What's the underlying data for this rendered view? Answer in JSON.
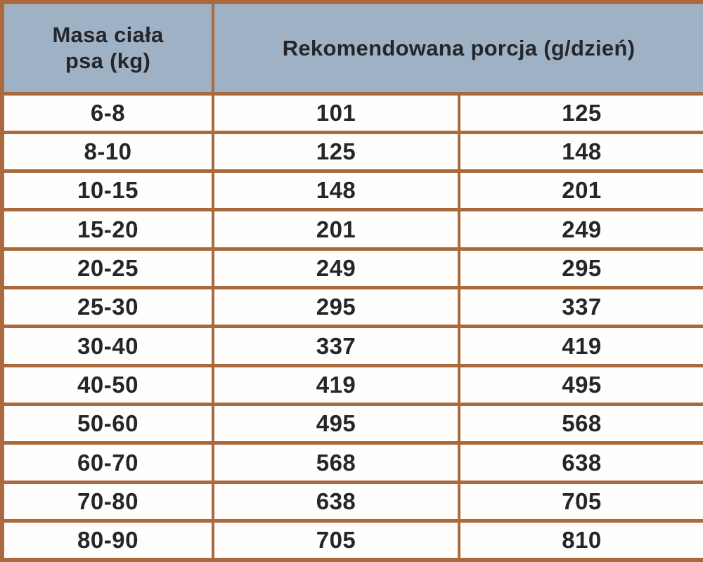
{
  "colors": {
    "border": "#ab6a3e",
    "header_bg": "#9fb2c5",
    "cell_bg": "#fffefc",
    "text": "#25262b"
  },
  "header": {
    "weight_label_lines": [
      "Masa ciała",
      "psa (kg)"
    ],
    "portion_label": "Rekomendowana porcja (g/dzień)"
  },
  "chart_data": {
    "type": "table",
    "title": "",
    "column_groups": [
      {
        "label": "Masa ciała psa (kg)",
        "span": 1
      },
      {
        "label": "Rekomendowana porcja (g/dzień)",
        "span": 2
      }
    ],
    "rows": [
      [
        "6-8",
        "101",
        "125"
      ],
      [
        "8-10",
        "125",
        "148"
      ],
      [
        "10-15",
        "148",
        "201"
      ],
      [
        "15-20",
        "201",
        "249"
      ],
      [
        "20-25",
        "249",
        "295"
      ],
      [
        "25-30",
        "295",
        "337"
      ],
      [
        "30-40",
        "337",
        "419"
      ],
      [
        "40-50",
        "419",
        "495"
      ],
      [
        "50-60",
        "495",
        "568"
      ],
      [
        "60-70",
        "568",
        "638"
      ],
      [
        "70-80",
        "638",
        "705"
      ],
      [
        "80-90",
        "705",
        "810"
      ]
    ]
  }
}
